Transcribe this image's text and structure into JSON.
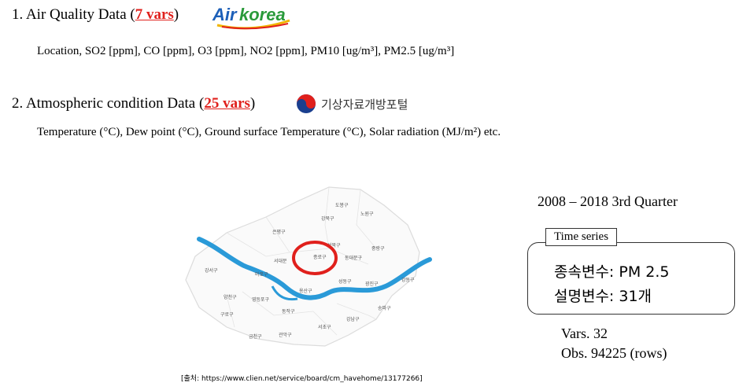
{
  "section1": {
    "prefix": "1. Air Quality Data (",
    "count": "7 vars",
    "suffix": ")",
    "logo_air": "Air",
    "logo_korea": "korea",
    "variables": "Location, SO2 [ppm], CO [ppm], O3 [ppm], NO2 [ppm], PM10 [ug/m³], PM2.5 [ug/m³]"
  },
  "section2": {
    "prefix": "2. Atmospheric condition Data (",
    "count": "25 vars",
    "suffix": ")",
    "logo_text": "기상자료개방포털",
    "variables": "Temperature (°C), Dew point (°C), Ground surface Temperature (°C), Solar radiation (MJ/m²)   etc."
  },
  "period": "2008 – 2018 3rd Quarter",
  "timeseries": {
    "tag": "Time series",
    "dependent": "종속변수: PM 2.5",
    "independent": "설명변수: 31개"
  },
  "stats": {
    "vars": "Vars. 32",
    "obs": "Obs. 94225 (rows)"
  },
  "source": "[출처: https://www.clien.net/service/board/cm_havehome/13177266]",
  "map": {
    "districts": [
      "도봉구",
      "노원구",
      "강북구",
      "은평구",
      "성북구",
      "중랑구",
      "종로구",
      "동대문구",
      "서대문",
      "강서구",
      "마포구",
      "성동구",
      "광진구",
      "강동구",
      "용산구",
      "양천구",
      "영등포구",
      "구로구",
      "동작구",
      "서초구",
      "송파구",
      "강남구",
      "금천구",
      "관악구"
    ]
  },
  "colors": {
    "accent_red": "#e0201c",
    "river": "#2a9ad8",
    "highlight": "#e0201c"
  }
}
